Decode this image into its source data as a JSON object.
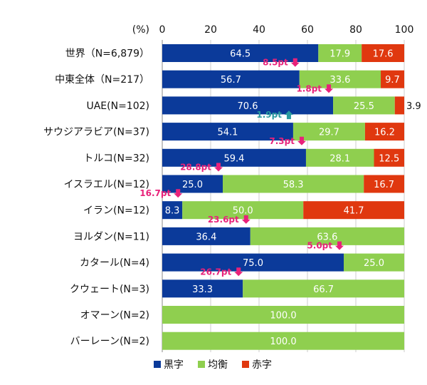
{
  "chart_data": {
    "type": "bar",
    "orientation": "horizontal",
    "stacked": true,
    "unit_label": "(%)",
    "xlim": [
      0,
      100
    ],
    "xticks": [
      "0",
      "20",
      "40",
      "60",
      "80",
      "100"
    ],
    "grid": true,
    "legend_position": "bottom",
    "categories": [
      "世界（N=6,879）",
      "中東全体（N=217）",
      "UAE(N=102)",
      "サウジアラビア(N=37)",
      "トルコ(N=32)",
      "イスラエル(N=12)",
      "イラン(N=12)",
      "ヨルダン(N=11)",
      "カタール(N=4)",
      "クウェート(N=3)",
      "オマーン(N=2)",
      "バーレーン(N=2)"
    ],
    "series": [
      {
        "name": "黒字",
        "color": "#0b3a9a",
        "values": [
          64.5,
          56.7,
          70.6,
          54.1,
          59.4,
          25.0,
          8.3,
          36.4,
          75.0,
          33.3,
          0,
          0
        ],
        "labels": [
          "64.5",
          "56.7",
          "70.6",
          "54.1",
          "59.4",
          "25.0",
          "8.3",
          "36.4",
          "75.0",
          "33.3",
          "",
          ""
        ]
      },
      {
        "name": "均衡",
        "color": "#8fcf4f",
        "values": [
          17.9,
          33.6,
          25.5,
          29.7,
          28.1,
          58.3,
          50.0,
          63.6,
          25.0,
          66.7,
          100.0,
          100.0
        ],
        "labels": [
          "17.9",
          "33.6",
          "25.5",
          "29.7",
          "28.1",
          "58.3",
          "50.0",
          "63.6",
          "25.0",
          "66.7",
          "100.0",
          "100.0"
        ]
      },
      {
        "name": "赤字",
        "color": "#e0380f",
        "values": [
          17.6,
          9.7,
          3.9,
          16.2,
          12.5,
          16.7,
          41.7,
          0,
          0,
          0,
          0,
          0
        ],
        "labels": [
          "17.6",
          "9.7",
          "3.9",
          "16.2",
          "12.5",
          "16.7",
          "41.7",
          "",
          "",
          "",
          "",
          ""
        ]
      }
    ],
    "annotations": [
      {
        "category_index": 1,
        "text": "8.5pt",
        "direction": "down",
        "color": "#e8227a"
      },
      {
        "category_index": 2,
        "text": "1.8pt",
        "direction": "down",
        "color": "#e8227a"
      },
      {
        "category_index": 3,
        "text": "1.9pt",
        "direction": "up",
        "color": "#2a9aa0"
      },
      {
        "category_index": 4,
        "text": "7.3pt",
        "direction": "down",
        "color": "#e8227a"
      },
      {
        "category_index": 5,
        "text": "28.8pt",
        "direction": "down",
        "color": "#e8227a"
      },
      {
        "category_index": 6,
        "text": "16.7pt",
        "direction": "down",
        "color": "#e8227a"
      },
      {
        "category_index": 7,
        "text": "23.6pt",
        "direction": "down",
        "color": "#e8227a"
      },
      {
        "category_index": 8,
        "text": "5.0pt",
        "direction": "down",
        "color": "#e8227a"
      },
      {
        "category_index": 9,
        "text": "26.7pt",
        "direction": "down",
        "color": "#e8227a"
      }
    ],
    "legend": [
      "黒字",
      "均衡",
      "赤字"
    ]
  }
}
